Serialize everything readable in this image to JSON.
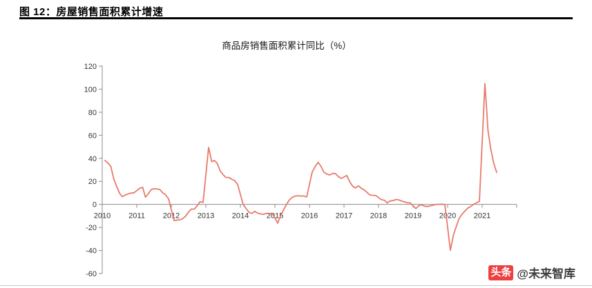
{
  "header": {
    "title": "图 12：房屋销售面积累计增速"
  },
  "watermark": {
    "badge": "头条",
    "handle": "@未来智库",
    "badge_color": "#ED4040"
  },
  "chart_data": {
    "type": "line",
    "title": "商品房销售面积累计同比（%）",
    "series_name": "商品房销售面积累计同比",
    "line_color": "#E8796B",
    "axis_color": "#8c8c8c",
    "label_color": "#333333",
    "ylim": [
      -60,
      120
    ],
    "yticks": [
      120,
      100,
      80,
      60,
      40,
      20,
      0,
      -20,
      -40,
      -60
    ],
    "xticks": [
      2010,
      2011,
      2012,
      2013,
      2014,
      2015,
      2016,
      2017,
      2018,
      2019,
      2020,
      2021
    ],
    "grid": false,
    "legend": "none",
    "points": [
      [
        2010.08,
        38.2
      ],
      [
        2010.17,
        35.8
      ],
      [
        2010.25,
        32.8
      ],
      [
        2010.33,
        22.5
      ],
      [
        2010.42,
        15.4
      ],
      [
        2010.5,
        9.7
      ],
      [
        2010.58,
        6.7
      ],
      [
        2010.67,
        8.2
      ],
      [
        2010.75,
        9.1
      ],
      [
        2010.83,
        9.8
      ],
      [
        2010.92,
        10.1
      ],
      [
        2011.08,
        13.9
      ],
      [
        2011.17,
        14.9
      ],
      [
        2011.25,
        6.3
      ],
      [
        2011.33,
        9.1
      ],
      [
        2011.42,
        12.9
      ],
      [
        2011.5,
        13.6
      ],
      [
        2011.58,
        13.5
      ],
      [
        2011.67,
        12.9
      ],
      [
        2011.75,
        10.0
      ],
      [
        2011.83,
        8.5
      ],
      [
        2011.92,
        4.9
      ],
      [
        2012.08,
        -14.0
      ],
      [
        2012.17,
        -13.6
      ],
      [
        2012.25,
        -13.4
      ],
      [
        2012.33,
        -12.4
      ],
      [
        2012.42,
        -10.0
      ],
      [
        2012.5,
        -6.6
      ],
      [
        2012.58,
        -4.1
      ],
      [
        2012.67,
        -4.0
      ],
      [
        2012.75,
        -1.1
      ],
      [
        2012.83,
        2.4
      ],
      [
        2012.92,
        1.8
      ],
      [
        2013.08,
        49.5
      ],
      [
        2013.17,
        37.1
      ],
      [
        2013.25,
        38.1
      ],
      [
        2013.33,
        35.6
      ],
      [
        2013.42,
        28.7
      ],
      [
        2013.5,
        25.8
      ],
      [
        2013.58,
        23.4
      ],
      [
        2013.67,
        23.3
      ],
      [
        2013.75,
        21.8
      ],
      [
        2013.83,
        20.8
      ],
      [
        2013.92,
        17.3
      ],
      [
        2014.08,
        -0.1
      ],
      [
        2014.17,
        -3.8
      ],
      [
        2014.25,
        -6.9
      ],
      [
        2014.33,
        -7.8
      ],
      [
        2014.42,
        -6.0
      ],
      [
        2014.5,
        -7.6
      ],
      [
        2014.58,
        -8.3
      ],
      [
        2014.67,
        -8.6
      ],
      [
        2014.75,
        -7.8
      ],
      [
        2014.83,
        -8.2
      ],
      [
        2014.92,
        -7.6
      ],
      [
        2015.08,
        -16.3
      ],
      [
        2015.17,
        -9.2
      ],
      [
        2015.25,
        -4.8
      ],
      [
        2015.33,
        -0.2
      ],
      [
        2015.42,
        3.9
      ],
      [
        2015.5,
        6.1
      ],
      [
        2015.58,
        7.2
      ],
      [
        2015.67,
        7.5
      ],
      [
        2015.75,
        7.2
      ],
      [
        2015.83,
        7.4
      ],
      [
        2015.92,
        6.5
      ],
      [
        2016.08,
        28.2
      ],
      [
        2016.17,
        33.1
      ],
      [
        2016.25,
        36.5
      ],
      [
        2016.33,
        33.2
      ],
      [
        2016.42,
        27.9
      ],
      [
        2016.5,
        26.4
      ],
      [
        2016.58,
        25.5
      ],
      [
        2016.67,
        26.9
      ],
      [
        2016.75,
        26.8
      ],
      [
        2016.83,
        24.3
      ],
      [
        2016.92,
        22.5
      ],
      [
        2017.08,
        25.1
      ],
      [
        2017.17,
        19.5
      ],
      [
        2017.25,
        15.7
      ],
      [
        2017.33,
        14.3
      ],
      [
        2017.42,
        16.1
      ],
      [
        2017.5,
        14.0
      ],
      [
        2017.58,
        12.7
      ],
      [
        2017.67,
        10.3
      ],
      [
        2017.75,
        8.2
      ],
      [
        2017.83,
        7.9
      ],
      [
        2017.92,
        7.7
      ],
      [
        2018.08,
        4.1
      ],
      [
        2018.17,
        3.6
      ],
      [
        2018.25,
        1.3
      ],
      [
        2018.33,
        2.9
      ],
      [
        2018.42,
        3.3
      ],
      [
        2018.5,
        4.2
      ],
      [
        2018.58,
        4.0
      ],
      [
        2018.67,
        2.9
      ],
      [
        2018.75,
        2.2
      ],
      [
        2018.83,
        1.4
      ],
      [
        2018.92,
        1.3
      ],
      [
        2019.08,
        -3.6
      ],
      [
        2019.17,
        -0.9
      ],
      [
        2019.25,
        -0.3
      ],
      [
        2019.33,
        -1.6
      ],
      [
        2019.42,
        -1.8
      ],
      [
        2019.5,
        -1.3
      ],
      [
        2019.58,
        -0.6
      ],
      [
        2019.67,
        -0.1
      ],
      [
        2019.75,
        0.1
      ],
      [
        2019.83,
        0.2
      ],
      [
        2019.92,
        -0.1
      ],
      [
        2020.08,
        -39.9
      ],
      [
        2020.17,
        -26.3
      ],
      [
        2020.25,
        -19.3
      ],
      [
        2020.33,
        -12.3
      ],
      [
        2020.42,
        -8.4
      ],
      [
        2020.5,
        -5.8
      ],
      [
        2020.58,
        -3.3
      ],
      [
        2020.67,
        -1.8
      ],
      [
        2020.75,
        0.0
      ],
      [
        2020.83,
        1.3
      ],
      [
        2020.92,
        2.6
      ],
      [
        2021.08,
        104.9
      ],
      [
        2021.17,
        63.8
      ],
      [
        2021.25,
        48.1
      ],
      [
        2021.33,
        36.3
      ],
      [
        2021.42,
        27.7
      ]
    ]
  }
}
